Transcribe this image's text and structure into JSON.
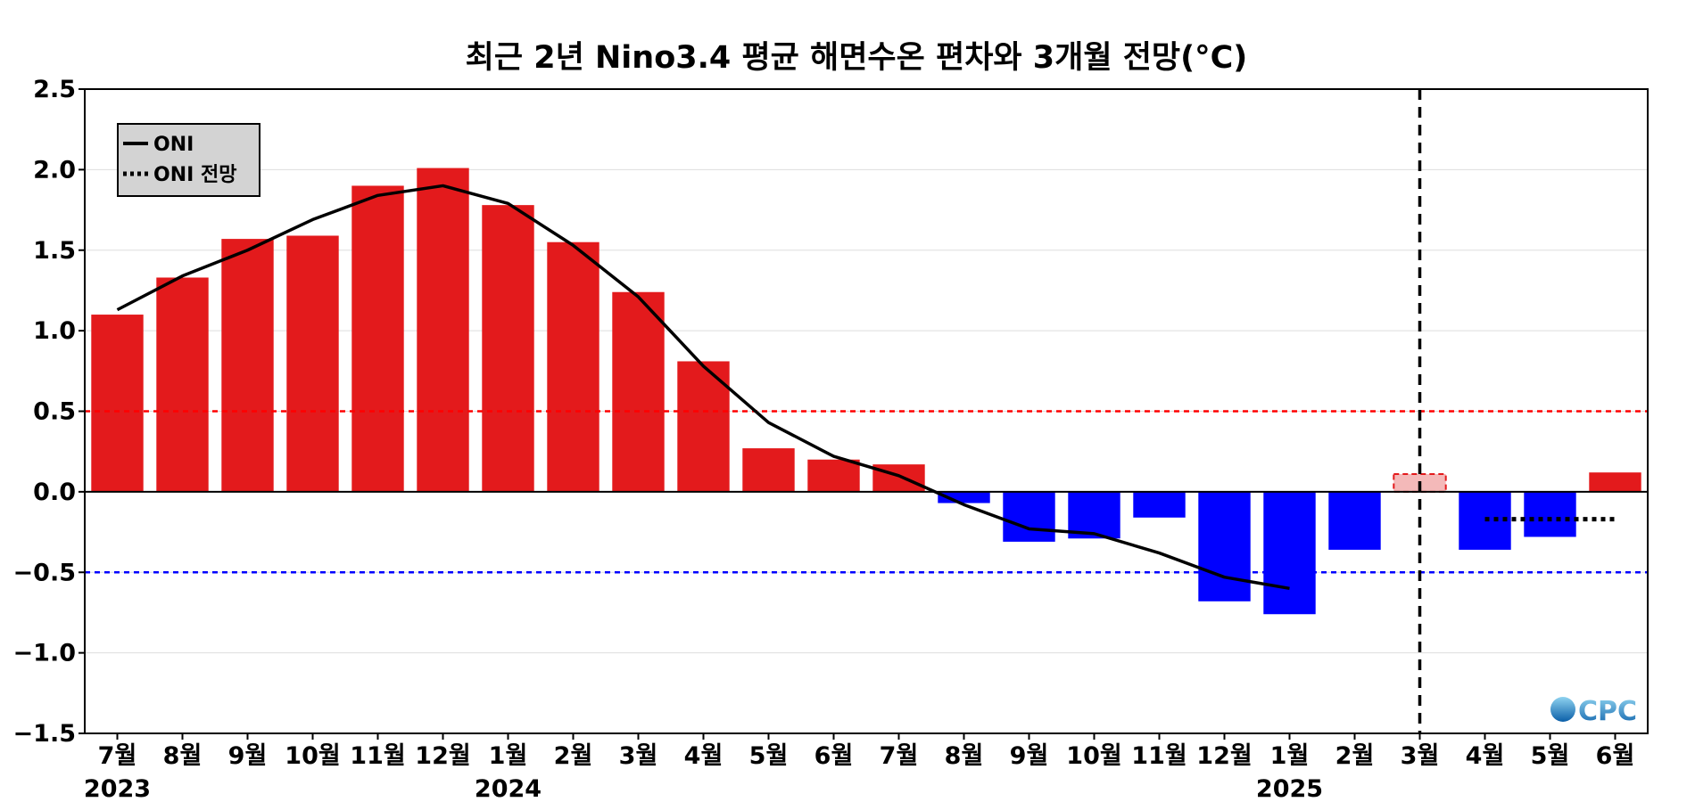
{
  "chart_data": {
    "type": "bar",
    "title": "최근 2년 Nino3.4 평균 해면수온 편차와 3개월 전망(°C)",
    "xlabel": "",
    "ylabel": "",
    "ylim": [
      -1.5,
      2.5
    ],
    "yticks": [
      {
        "value": -1.5,
        "label": "−1.5"
      },
      {
        "value": -1.0,
        "label": "−1.0"
      },
      {
        "value": -0.5,
        "label": "−0.5"
      },
      {
        "value": 0.0,
        "label": "0.0"
      },
      {
        "value": 0.5,
        "label": "0.5"
      },
      {
        "value": 1.0,
        "label": "1.0"
      },
      {
        "value": 1.5,
        "label": "1.5"
      },
      {
        "value": 2.0,
        "label": "2.0"
      },
      {
        "value": 2.5,
        "label": "2.5"
      }
    ],
    "categories": [
      "7월",
      "8월",
      "9월",
      "10월",
      "11월",
      "12월",
      "1월",
      "2월",
      "3월",
      "4월",
      "5월",
      "6월",
      "7월",
      "8월",
      "9월",
      "10월",
      "11월",
      "12월",
      "1월",
      "2월",
      "3월",
      "4월",
      "5월",
      "6월"
    ],
    "year_labels": [
      {
        "index": 0,
        "label": "2023"
      },
      {
        "index": 6,
        "label": "2024"
      },
      {
        "index": 18,
        "label": "2025"
      }
    ],
    "values": [
      1.1,
      1.33,
      1.57,
      1.59,
      1.9,
      2.01,
      1.78,
      1.55,
      1.24,
      0.81,
      0.27,
      0.2,
      0.17,
      -0.07,
      -0.31,
      -0.29,
      -0.16,
      -0.68,
      -0.76,
      -0.36,
      0.11,
      -0.36,
      -0.28,
      0.12
    ],
    "forecast_index": 20,
    "bar_colors": {
      "positive": "#e31a1c",
      "negative": "#0000ff",
      "forecast": "#f4b9b9",
      "forecast_border": "#e31a1c"
    },
    "series": [
      {
        "name": "ONI",
        "style": "solid",
        "x": [
          0,
          1,
          2,
          3,
          4,
          5,
          6,
          7,
          8,
          9,
          10,
          11,
          12,
          13,
          14,
          15,
          16,
          17,
          18
        ],
        "values": [
          1.13,
          1.34,
          1.5,
          1.69,
          1.84,
          1.9,
          1.79,
          1.53,
          1.21,
          0.78,
          0.43,
          0.22,
          0.1,
          -0.08,
          -0.23,
          -0.26,
          -0.38,
          -0.53,
          -0.6
        ],
        "color": "#000000"
      },
      {
        "name": "ONI 전망",
        "style": "dotted",
        "x": [
          21,
          22,
          23
        ],
        "values": [
          -0.17,
          -0.17,
          -0.17
        ],
        "color": "#000000"
      }
    ],
    "reference_lines": [
      {
        "value": 0.5,
        "color": "#ff0000",
        "style": "dashed"
      },
      {
        "value": -0.5,
        "color": "#0000ff",
        "style": "dashed"
      },
      {
        "value": 0.0,
        "color": "#000000",
        "style": "solid"
      }
    ],
    "grid": true,
    "legend_position": "top-left",
    "logo": "CPC"
  }
}
